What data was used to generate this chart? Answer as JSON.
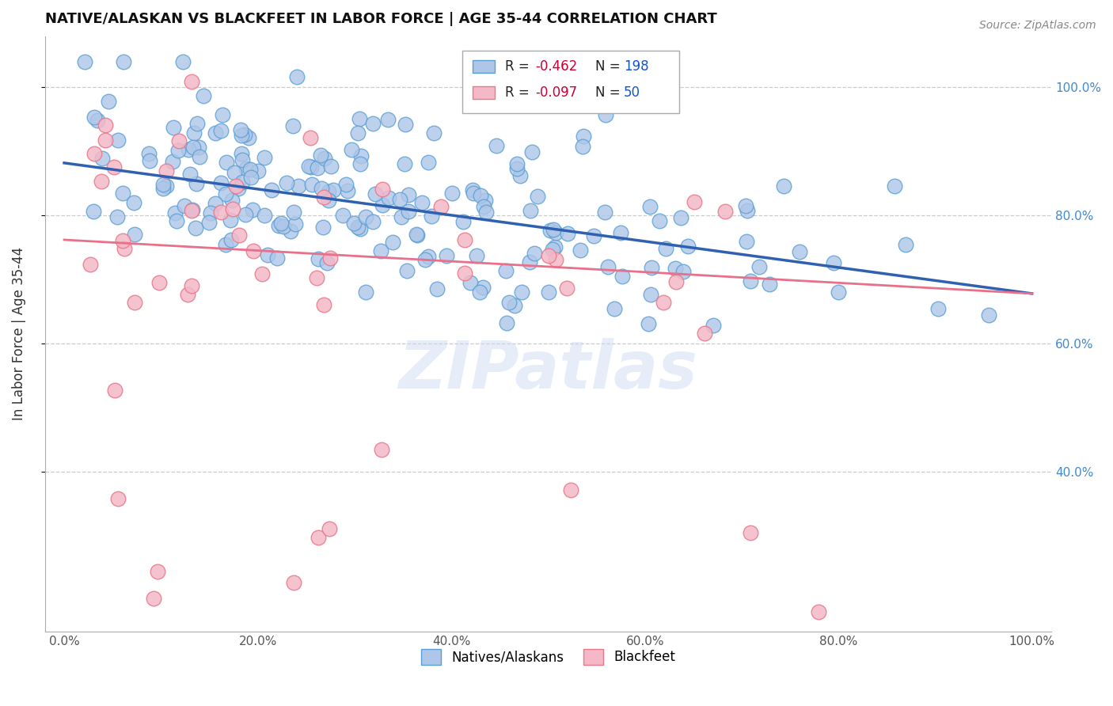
{
  "title": "NATIVE/ALASKAN VS BLACKFEET IN LABOR FORCE | AGE 35-44 CORRELATION CHART",
  "source": "Source: ZipAtlas.com",
  "ylabel": "In Labor Force | Age 35-44",
  "xlim": [
    -0.02,
    1.02
  ],
  "ylim": [
    0.15,
    1.08
  ],
  "right_yticklabels": [
    "40.0%",
    "60.0%",
    "80.0%",
    "100.0%"
  ],
  "right_ytick_vals": [
    0.4,
    0.6,
    0.8,
    1.0
  ],
  "xticklabels": [
    "0.0%",
    "20.0%",
    "40.0%",
    "60.0%",
    "80.0%",
    "100.0%"
  ],
  "xtick_vals": [
    0.0,
    0.2,
    0.4,
    0.6,
    0.8,
    1.0
  ],
  "blue_R": -0.462,
  "blue_N": 198,
  "pink_R": -0.097,
  "pink_N": 50,
  "blue_color": "#aec6e8",
  "blue_edge": "#5a9fd4",
  "pink_color": "#f4b8c8",
  "pink_edge": "#e8788a",
  "blue_line_color": "#3060b0",
  "pink_line_color": "#e8708a",
  "legend_R_color": "#cc0033",
  "legend_N_color": "#1155cc",
  "blue_line_start_y": 0.882,
  "blue_line_end_y": 0.678,
  "pink_line_start_y": 0.762,
  "pink_line_end_y": 0.678
}
